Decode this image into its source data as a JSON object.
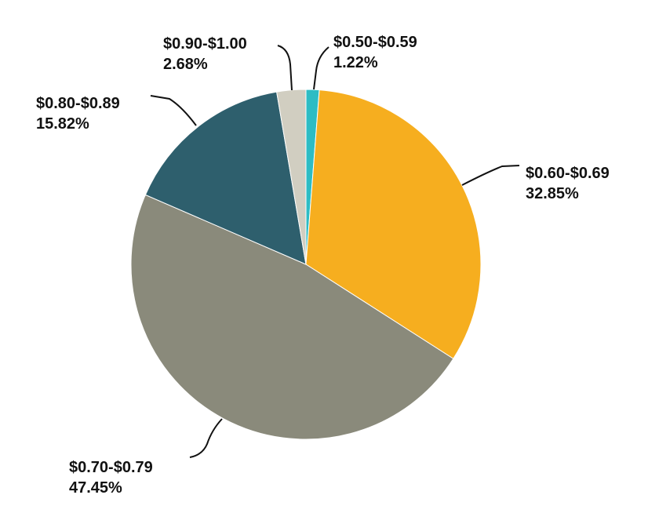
{
  "chart_data": {
    "type": "pie",
    "title": "",
    "start_angle_deg": 0,
    "direction": "clockwise",
    "slices": [
      {
        "label": "$0.50-$0.59",
        "value": 1.22,
        "value_label": "1.22%",
        "color": "#2dbcc4"
      },
      {
        "label": "$0.60-$0.69",
        "value": 32.85,
        "value_label": "32.85%",
        "color": "#f6ae1f"
      },
      {
        "label": "$0.70-$0.79",
        "value": 47.45,
        "value_label": "47.45%",
        "color": "#8a8a7b"
      },
      {
        "label": "$0.80-$0.89",
        "value": 15.82,
        "value_label": "15.82%",
        "color": "#2e5f6d"
      },
      {
        "label": "$0.90-$1.00",
        "value": 2.68,
        "value_label": "2.68%",
        "color": "#d1cec1"
      }
    ]
  }
}
